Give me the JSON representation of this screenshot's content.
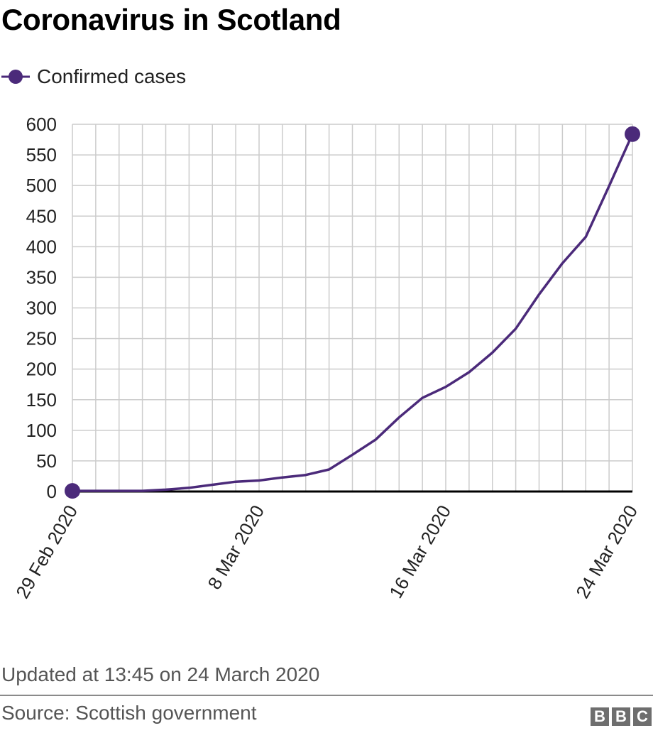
{
  "chart_data": {
    "type": "line",
    "title": "Coronavirus in Scotland",
    "series": [
      {
        "name": "Confirmed cases",
        "color": "#4b2a7a",
        "points": [
          [
            "2020-02-29",
            1
          ],
          [
            "2020-03-01",
            1
          ],
          [
            "2020-03-02",
            1
          ],
          [
            "2020-03-03",
            1
          ],
          [
            "2020-03-04",
            3
          ],
          [
            "2020-03-05",
            6
          ],
          [
            "2020-03-06",
            11
          ],
          [
            "2020-03-07",
            16
          ],
          [
            "2020-03-08",
            18
          ],
          [
            "2020-03-09",
            23
          ],
          [
            "2020-03-10",
            27
          ],
          [
            "2020-03-11",
            36
          ],
          [
            "2020-03-12",
            60
          ],
          [
            "2020-03-13",
            85
          ],
          [
            "2020-03-14",
            121
          ],
          [
            "2020-03-15",
            153
          ],
          [
            "2020-03-16",
            171
          ],
          [
            "2020-03-17",
            195
          ],
          [
            "2020-03-18",
            227
          ],
          [
            "2020-03-19",
            266
          ],
          [
            "2020-03-20",
            322
          ],
          [
            "2020-03-21",
            373
          ],
          [
            "2020-03-22",
            416
          ],
          [
            "2020-03-23",
            499
          ],
          [
            "2020-03-24",
            584
          ]
        ],
        "markers": [
          "2020-02-29",
          "2020-03-24"
        ]
      }
    ],
    "x_ticks": [
      {
        "date": "2020-02-29",
        "label": "29 Feb 2020"
      },
      {
        "date": "2020-03-08",
        "label": "8 Mar 2020"
      },
      {
        "date": "2020-03-16",
        "label": "16 Mar 2020"
      },
      {
        "date": "2020-03-24",
        "label": "24 Mar 2020"
      }
    ],
    "xlim": [
      "2020-02-29",
      "2020-03-24"
    ],
    "ylim": [
      0,
      600
    ],
    "y_ticks": [
      0,
      50,
      100,
      150,
      200,
      250,
      300,
      350,
      400,
      450,
      500,
      550,
      600
    ],
    "grid": true,
    "legend_position": "top-left"
  },
  "footer": {
    "updated": "Updated at 13:45 on 24 March 2020",
    "source": "Source: Scottish government",
    "logo_letters": [
      "B",
      "B",
      "C"
    ]
  },
  "colors": {
    "line": "#4b2a7a",
    "grid": "#cccccc",
    "axis": "#000000"
  }
}
